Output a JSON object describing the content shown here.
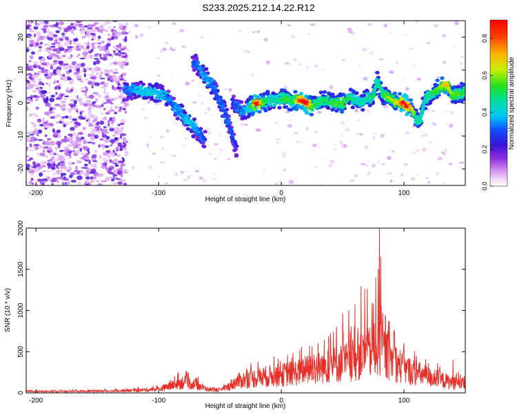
{
  "title": "S233.2025.212.14.22.R12",
  "colors": {
    "snr_line": "#e8302a",
    "axis": "#000000",
    "spectrogram_ramp": [
      "#ffffff",
      "#f4e0fb",
      "#d9a8f0",
      "#a95fe0",
      "#7a1fd8",
      "#2a12d8",
      "#1060ff",
      "#00d0f0",
      "#00e060",
      "#d8ee00",
      "#ff9a00",
      "#ff0000"
    ]
  },
  "chart_data": [
    {
      "type": "heatmap",
      "xlabel": "Height of straight line (km)",
      "ylabel": "Frequency (Hz)",
      "xlim": [
        -208,
        150
      ],
      "ylim": [
        -25,
        25
      ],
      "xticks": [
        -200,
        -100,
        0,
        100
      ],
      "yticks": [
        -20,
        -10,
        0,
        10,
        20
      ],
      "xtick_labels": [
        "-200",
        "-100",
        "0",
        "100"
      ],
      "ytick_labels": [
        "-20",
        "-10",
        "0",
        "10",
        "20"
      ],
      "colorbar": {
        "label": "Normalized spectral amplitude",
        "range": [
          0.0,
          0.9
        ],
        "ticks": [
          0.0,
          0.2,
          0.4,
          0.6,
          0.8
        ],
        "tick_labels": [
          "0.0",
          "0.2",
          "0.4",
          "0.6",
          "0.8"
        ]
      },
      "tracks": [
        {
          "points": [
            [
              -128,
              3.5,
              0.3
            ],
            [
              -120,
              4,
              0.35
            ],
            [
              -110,
              3.5,
              0.4
            ],
            [
              -100,
              3,
              0.4
            ],
            [
              -95,
              2,
              0.35
            ],
            [
              -90,
              0,
              0.3
            ],
            [
              -85,
              -2,
              0.35
            ],
            [
              -80,
              -4,
              0.35
            ],
            [
              -75,
              -6,
              0.4
            ],
            [
              -70,
              -8,
              0.35
            ],
            [
              -65,
              -10,
              0.3
            ],
            [
              -62,
              -11,
              0.25
            ]
          ]
        },
        {
          "points": [
            [
              -72,
              12.5,
              0.3
            ],
            [
              -68,
              11,
              0.3
            ],
            [
              -65,
              9.5,
              0.35
            ],
            [
              -60,
              7,
              0.35
            ],
            [
              -55,
              5,
              0.3
            ],
            [
              -52,
              2,
              0.3
            ],
            [
              -48,
              -1,
              0.3
            ],
            [
              -45,
              -4,
              0.3
            ],
            [
              -42,
              -7,
              0.3
            ],
            [
              -40,
              -10,
              0.28
            ],
            [
              -38,
              -12,
              0.25
            ],
            [
              -36,
              -15,
              0.2
            ]
          ]
        },
        {
          "points": [
            [
              -40,
              0,
              0.25
            ],
            [
              -35,
              -1.5,
              0.3
            ],
            [
              -30,
              -3,
              0.35
            ],
            [
              -25,
              -1,
              0.45
            ],
            [
              -20,
              0,
              0.95
            ],
            [
              -15,
              0,
              0.6
            ],
            [
              -10,
              1,
              0.45
            ],
            [
              -5,
              0.5,
              0.45
            ],
            [
              0,
              1.5,
              0.5
            ],
            [
              5,
              1,
              0.55
            ],
            [
              10,
              0.5,
              0.5
            ],
            [
              15,
              1,
              0.8
            ],
            [
              20,
              0,
              0.95
            ],
            [
              25,
              -1,
              0.55
            ],
            [
              30,
              0,
              0.5
            ],
            [
              35,
              1,
              0.5
            ],
            [
              40,
              0.5,
              0.5
            ],
            [
              45,
              0,
              0.55
            ],
            [
              50,
              0,
              0.55
            ],
            [
              55,
              1.5,
              0.5
            ],
            [
              60,
              1,
              0.45
            ],
            [
              65,
              0,
              0.45
            ],
            [
              70,
              1.5,
              0.45
            ],
            [
              75,
              2,
              0.5
            ],
            [
              78,
              7,
              0.45
            ],
            [
              80,
              5,
              0.5
            ],
            [
              82,
              3,
              0.5
            ],
            [
              85,
              2,
              0.55
            ],
            [
              90,
              1,
              0.6
            ],
            [
              95,
              0,
              0.65
            ],
            [
              100,
              0,
              0.9
            ],
            [
              103,
              -1,
              0.85
            ],
            [
              106,
              -1.5,
              0.7
            ],
            [
              110,
              -5,
              0.45
            ],
            [
              113,
              -6,
              0.45
            ],
            [
              116,
              0,
              0.45
            ],
            [
              120,
              2.5,
              0.45
            ],
            [
              125,
              3.5,
              0.55
            ],
            [
              130,
              5,
              0.6
            ],
            [
              135,
              6,
              0.7
            ],
            [
              138,
              3,
              0.6
            ],
            [
              142,
              2.5,
              0.55
            ],
            [
              146,
              3,
              0.55
            ],
            [
              150,
              3.5,
              0.5
            ]
          ]
        }
      ]
    },
    {
      "type": "line",
      "xlabel": "Height of straight line (km)",
      "ylabel": "SNR (10 * v/v)",
      "xlim": [
        -208,
        150
      ],
      "ylim": [
        0,
        2000
      ],
      "xticks": [
        -200,
        -100,
        0,
        100
      ],
      "yticks": [
        0,
        500,
        1000,
        1500,
        2000
      ],
      "xtick_labels": [
        "-200",
        "-100",
        "0",
        "100"
      ],
      "ytick_labels": [
        "0",
        "500",
        "1000",
        "1500",
        "2000"
      ],
      "envelope": {
        "x": [
          -208,
          -180,
          -150,
          -120,
          -100,
          -90,
          -80,
          -70,
          -60,
          -50,
          -45,
          -40,
          -35,
          -30,
          -20,
          -10,
          0,
          10,
          20,
          30,
          40,
          50,
          60,
          65,
          70,
          75,
          80,
          85,
          90,
          95,
          100,
          110,
          120,
          130,
          140,
          150
        ],
        "y": [
          20,
          25,
          30,
          40,
          60,
          120,
          180,
          140,
          60,
          40,
          80,
          150,
          200,
          220,
          250,
          280,
          300,
          330,
          380,
          420,
          460,
          500,
          550,
          600,
          650,
          700,
          750,
          650,
          550,
          480,
          400,
          330,
          270,
          220,
          170,
          150
        ]
      },
      "peaks": [
        [
          5,
          460
        ],
        [
          15,
          520
        ],
        [
          25,
          560
        ],
        [
          30,
          600
        ],
        [
          35,
          640
        ],
        [
          40,
          720
        ],
        [
          45,
          800
        ],
        [
          50,
          960
        ],
        [
          55,
          1000
        ],
        [
          60,
          1070
        ],
        [
          65,
          1290
        ],
        [
          68,
          1260
        ],
        [
          70,
          1260
        ],
        [
          75,
          1080
        ],
        [
          77,
          1400
        ],
        [
          79,
          1500
        ],
        [
          80,
          2000
        ],
        [
          81,
          1650
        ],
        [
          85,
          920
        ],
        [
          88,
          870
        ],
        [
          92,
          700
        ],
        [
          100,
          600
        ],
        [
          110,
          450
        ],
        [
          120,
          360
        ],
        [
          140,
          400
        ]
      ]
    }
  ]
}
